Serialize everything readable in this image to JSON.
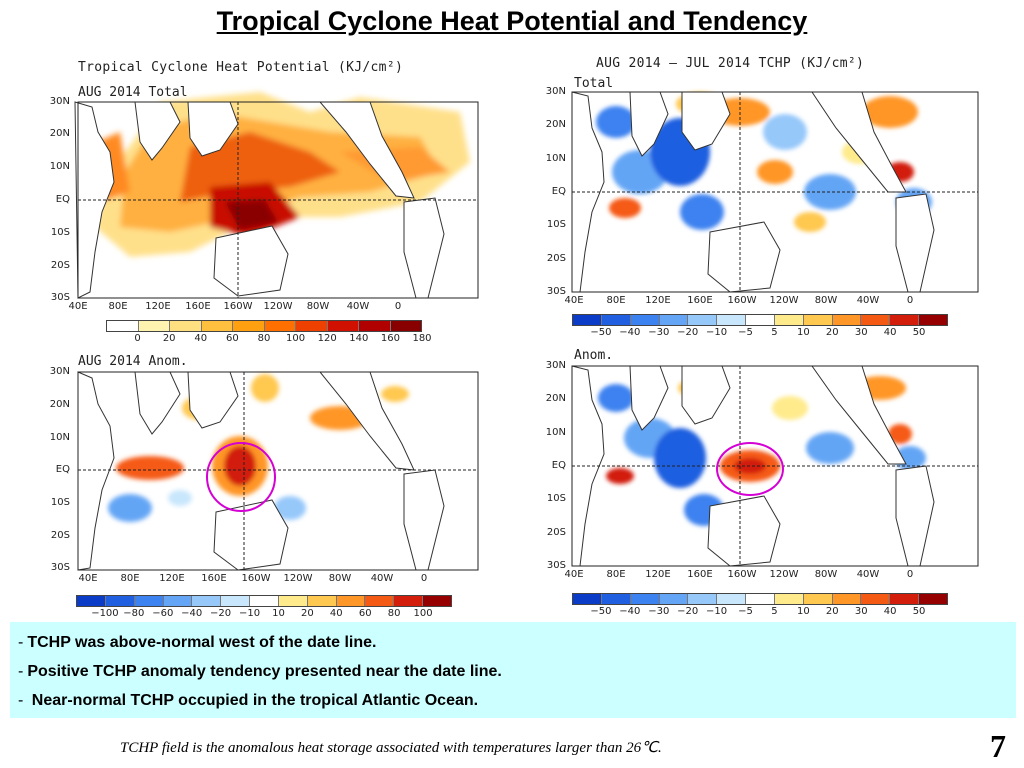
{
  "slide_title": "Tropical Cyclone Heat Potential and Tendency",
  "panels": [
    {
      "id": "tl",
      "title": "Tropical Cyclone Heat Potential (KJ/cm²)",
      "subtitle": "AUG 2014 Total",
      "lat_labels": [
        "30N",
        "20N",
        "10N",
        "EQ",
        "10S",
        "20S",
        "30S"
      ],
      "lon_labels": [
        "40E",
        "80E",
        "120E",
        "160E",
        "160W",
        "120W",
        "80W",
        "40W",
        "0"
      ],
      "colorbar_labels": [
        "0",
        "20",
        "40",
        "60",
        "80",
        "100",
        "120",
        "140",
        "160",
        "180"
      ],
      "colorbar_colors": [
        "#ffffff",
        "#fff3b0",
        "#ffdf80",
        "#ffc040",
        "#ffa010",
        "#ff7000",
        "#ee4000",
        "#d01000",
        "#b00000",
        "#880000"
      ]
    },
    {
      "id": "tr",
      "title": "AUG 2014 — JUL 2014 TCHP (KJ/cm²)",
      "subtitle": "Total",
      "lat_labels": [
        "30N",
        "20N",
        "10N",
        "EQ",
        "10S",
        "20S",
        "30S"
      ],
      "lon_labels": [
        "40E",
        "80E",
        "120E",
        "160E",
        "160W",
        "120W",
        "80W",
        "40W",
        "0"
      ],
      "colorbar_labels": [
        "−50",
        "−40",
        "−30",
        "−20",
        "−10",
        "−5",
        "5",
        "10",
        "20",
        "30",
        "40",
        "50"
      ],
      "colorbar_colors": [
        "#0a3cc8",
        "#1f5fe0",
        "#3c82f0",
        "#64a5f5",
        "#96c8fa",
        "#c8e6fc",
        "#ffffff",
        "#ffeb8c",
        "#ffc850",
        "#ff9628",
        "#f55a14",
        "#d21e0a",
        "#960000"
      ]
    },
    {
      "id": "bl",
      "title": "",
      "subtitle": "AUG 2014 Anom.",
      "lat_labels": [
        "30N",
        "20N",
        "10N",
        "EQ",
        "10S",
        "20S",
        "30S"
      ],
      "lon_labels": [
        "40E",
        "80E",
        "120E",
        "160E",
        "160W",
        "120W",
        "80W",
        "40W",
        "0"
      ],
      "colorbar_labels": [
        "−100",
        "−80",
        "−60",
        "−40",
        "−20",
        "−10",
        "10",
        "20",
        "40",
        "60",
        "80",
        "100"
      ],
      "colorbar_colors": [
        "#0a3cc8",
        "#1f5fe0",
        "#3c82f0",
        "#64a5f5",
        "#96c8fa",
        "#c8e6fc",
        "#ffffff",
        "#ffeb8c",
        "#ffc850",
        "#ff9628",
        "#f55a14",
        "#d21e0a",
        "#960000"
      ]
    },
    {
      "id": "br",
      "title": "",
      "subtitle": "Anom.",
      "lat_labels": [
        "30N",
        "20N",
        "10N",
        "EQ",
        "10S",
        "20S",
        "30S"
      ],
      "lon_labels": [
        "40E",
        "80E",
        "120E",
        "160E",
        "160W",
        "120W",
        "80W",
        "40W",
        "0"
      ],
      "colorbar_labels": [
        "−50",
        "−40",
        "−30",
        "−20",
        "−10",
        "−5",
        "5",
        "10",
        "20",
        "30",
        "40",
        "50"
      ],
      "colorbar_colors": [
        "#0a3cc8",
        "#1f5fe0",
        "#3c82f0",
        "#64a5f5",
        "#96c8fa",
        "#c8e6fc",
        "#ffffff",
        "#ffeb8c",
        "#ffc850",
        "#ff9628",
        "#f55a14",
        "#d21e0a",
        "#960000"
      ]
    }
  ],
  "bullets": [
    "TCHP was above-normal west of the date line.",
    "Positive TCHP anomaly tendency presented near the date line.",
    " Near-normal TCHP occupied in the tropical Atlantic Ocean."
  ],
  "footnote": "TCHP field is the anomalous heat storage associated with temperatures larger than 26℃.",
  "page_number": "7",
  "highlight_color": "#d400d4"
}
